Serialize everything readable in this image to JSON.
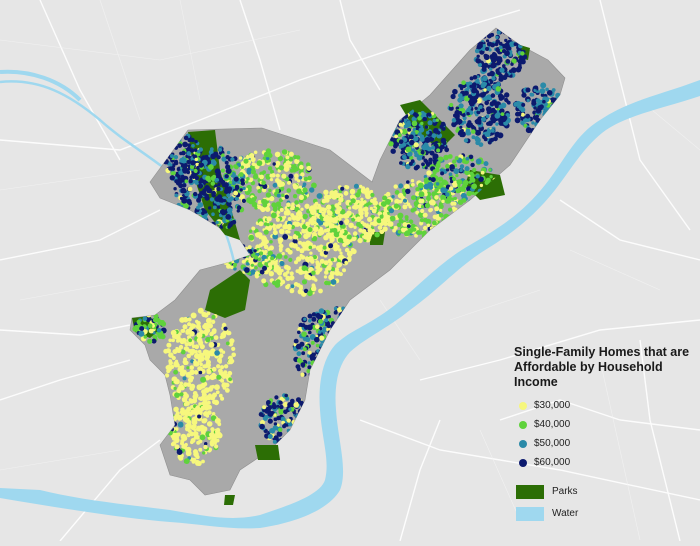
{
  "legend": {
    "title_lines": [
      "Single-Family Homes that are",
      "Affordable by Household",
      "Income"
    ],
    "income_items": [
      {
        "label": "$30,000",
        "color": "#f6f77d"
      },
      {
        "label": "$40,000",
        "color": "#5fd23c"
      },
      {
        "label": "$50,000",
        "color": "#2a8aa8"
      },
      {
        "label": "$60,000",
        "color": "#0c1a6e"
      }
    ],
    "parks": {
      "label": "Parks",
      "color": "#2c6e05"
    },
    "water": {
      "label": "Water",
      "color": "#9fd8ef"
    }
  },
  "colors": {
    "background": "#e6e6e6",
    "city_base": "#a9a9a9",
    "roads": "#ffffff"
  }
}
